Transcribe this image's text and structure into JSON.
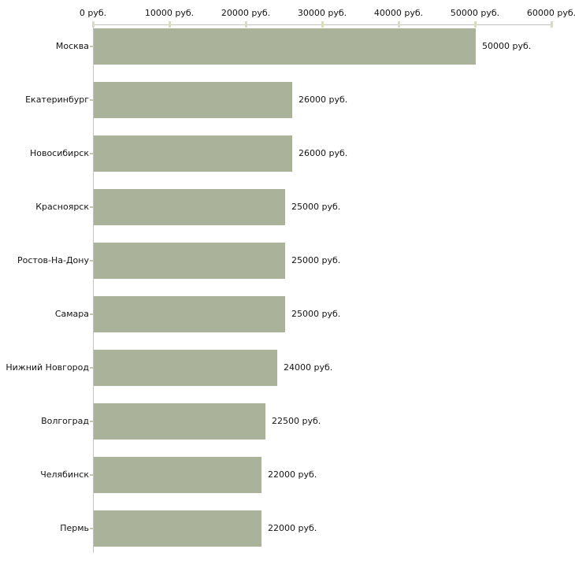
{
  "chart_data": {
    "type": "bar",
    "orientation": "horizontal",
    "title": "",
    "categories": [
      "Москва",
      "Екатеринбург",
      "Новосибирск",
      "Красноярск",
      "Ростов-На-Дону",
      "Самара",
      "Нижний Новгород",
      "Волгоград",
      "Челябинск",
      "Пермь"
    ],
    "values": [
      50000,
      26000,
      26000,
      25000,
      25000,
      25000,
      24000,
      22500,
      22000,
      22000
    ],
    "value_labels": [
      "50000 руб.",
      "26000 руб.",
      "26000 руб.",
      "25000 руб.",
      "25000 руб.",
      "25000 руб.",
      "24000 руб.",
      "22500 руб.",
      "22000 руб.",
      "22000 руб."
    ],
    "x_ticks": [
      {
        "value": 0,
        "label": "0 руб."
      },
      {
        "value": 10000,
        "label": "10000 руб."
      },
      {
        "value": 20000,
        "label": "20000 руб."
      },
      {
        "value": 30000,
        "label": "30000 руб."
      },
      {
        "value": 40000,
        "label": "40000 руб."
      },
      {
        "value": 50000,
        "label": "50000 руб."
      },
      {
        "value": 60000,
        "label": "60000 руб."
      }
    ],
    "xlim": [
      0,
      60000
    ],
    "unit": "руб.",
    "grid": false,
    "legend": false,
    "colors": {
      "bar": "#abb29a",
      "axis": "#c3c3c3",
      "x_tick": "#d9ddbd",
      "category_tick": "#c2c6aa",
      "text": "#141414",
      "background": "#ffffff"
    }
  }
}
